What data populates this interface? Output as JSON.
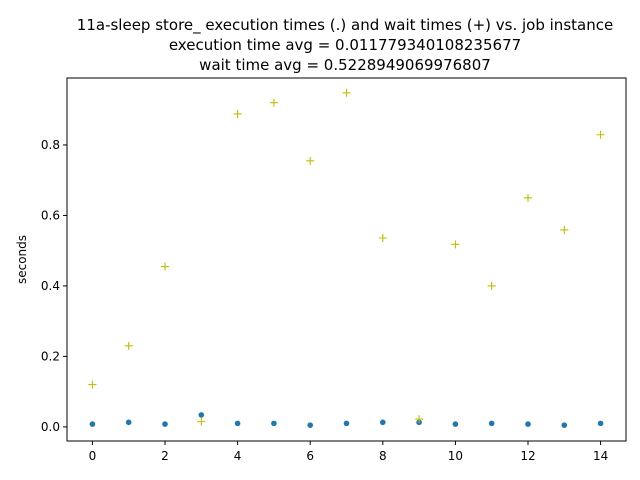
{
  "chart_data": {
    "type": "scatter",
    "title_lines": [
      "11a-sleep store_ execution times (.) and wait times (+) vs. job instance",
      "execution time avg = 0.011779340108235677",
      "wait time avg = 0.5228949069976807"
    ],
    "xlabel": "",
    "ylabel": "seconds",
    "xlim": [
      -0.7,
      14.7
    ],
    "ylim": [
      -0.04,
      0.99
    ],
    "xticks": [
      0,
      2,
      4,
      6,
      8,
      10,
      12,
      14
    ],
    "yticks": [
      0.0,
      0.2,
      0.4,
      0.6,
      0.8
    ],
    "grid": false,
    "series": [
      {
        "marker": "dot",
        "color": "#1f77b4",
        "x": [
          0,
          1,
          2,
          3,
          4,
          5,
          6,
          7,
          8,
          9,
          10,
          11,
          12,
          13,
          14
        ],
        "y": [
          0.008,
          0.013,
          0.008,
          0.034,
          0.01,
          0.01,
          0.005,
          0.01,
          0.013,
          0.013,
          0.008,
          0.01,
          0.008,
          0.005,
          0.01
        ]
      },
      {
        "marker": "plus",
        "color": "#bfbf00",
        "x": [
          0,
          1,
          2,
          3,
          4,
          5,
          6,
          7,
          8,
          9,
          10,
          11,
          12,
          13,
          14
        ],
        "y": [
          0.12,
          0.23,
          0.455,
          0.015,
          0.888,
          0.92,
          0.755,
          0.948,
          0.536,
          0.022,
          0.518,
          0.4,
          0.65,
          0.559,
          0.829
        ]
      }
    ]
  }
}
